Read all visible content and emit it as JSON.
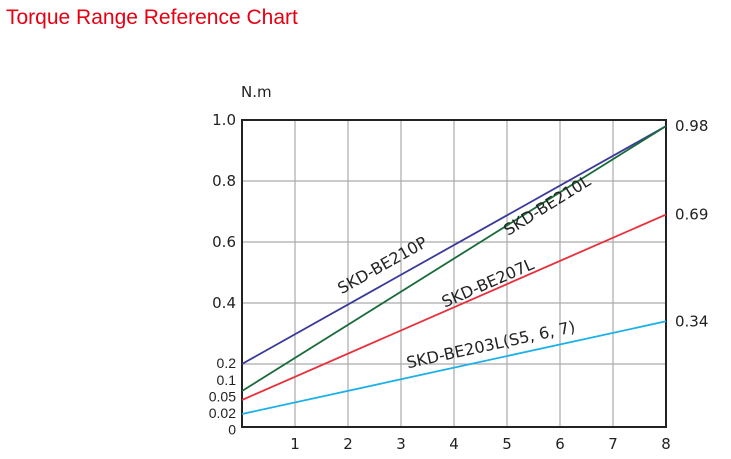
{
  "title": "Torque Range Reference Chart",
  "chart_data": {
    "type": "line",
    "title": "Torque Range Reference Chart",
    "ylabel": "N.m",
    "xlabel": "",
    "xlim": [
      0,
      8
    ],
    "ylim": [
      0,
      1.0
    ],
    "x_ticks": [
      "1",
      "2",
      "3",
      "4",
      "5",
      "6",
      "7",
      "8"
    ],
    "y_ticks": [
      {
        "value": 1.0,
        "label": "1.0"
      },
      {
        "value": 0.8,
        "label": "0.8"
      },
      {
        "value": 0.6,
        "label": "0.6"
      },
      {
        "value": 0.4,
        "label": "0.4"
      },
      {
        "value": 0.2,
        "label": "0.2"
      },
      {
        "value": 0.1,
        "label": "0.1"
      },
      {
        "value": 0.05,
        "label": "0.05"
      },
      {
        "value": 0.02,
        "label": "0.02"
      },
      {
        "value": 0,
        "label": "0"
      }
    ],
    "grid": true,
    "series": [
      {
        "name": "SKD-BE210P",
        "color": "#3a3a9a",
        "x": [
          0,
          8
        ],
        "y": [
          0.2,
          0.98
        ]
      },
      {
        "name": "SKD-BE210L",
        "color": "#1a6b3a",
        "x": [
          0,
          8
        ],
        "y": [
          0.1,
          0.98
        ]
      },
      {
        "name": "SKD-BE207L",
        "color": "#e8303a",
        "x": [
          0,
          8
        ],
        "y": [
          0.05,
          0.69
        ]
      },
      {
        "name": "SKD-BE203L(S5, 6, 7)",
        "color": "#1ab0e8",
        "x": [
          0,
          8
        ],
        "y": [
          0.02,
          0.34
        ]
      }
    ],
    "end_labels": [
      "0.98",
      "0.69",
      "0.34"
    ]
  }
}
